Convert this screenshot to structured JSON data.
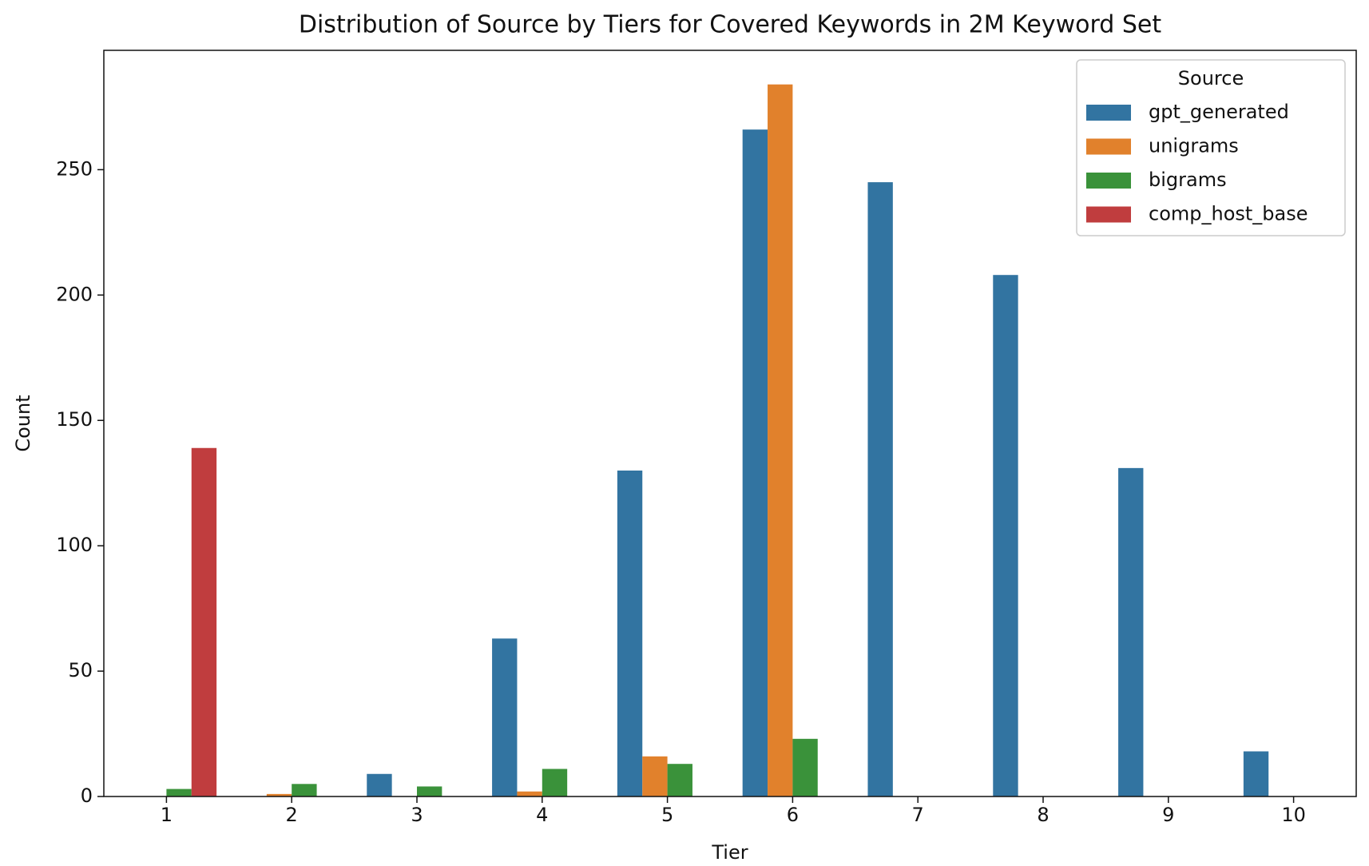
{
  "chart_data": {
    "type": "bar",
    "title": "Distribution of Source by Tiers for Covered Keywords in 2M Keyword Set",
    "x_label": "Tier",
    "y_label": "Count",
    "categories": [
      "1",
      "2",
      "3",
      "4",
      "5",
      "6",
      "7",
      "8",
      "9",
      "10"
    ],
    "legend_title": "Source",
    "legend": "upper right",
    "series": [
      {
        "name": "gpt_generated",
        "color": "#3274a1",
        "values": [
          null,
          null,
          9,
          63,
          130,
          266,
          245,
          208,
          131,
          18
        ]
      },
      {
        "name": "unigrams",
        "color": "#e1812c",
        "values": [
          null,
          1,
          null,
          2,
          16,
          284,
          null,
          null,
          null,
          null
        ]
      },
      {
        "name": "bigrams",
        "color": "#3a923a",
        "values": [
          3,
          5,
          4,
          11,
          13,
          23,
          null,
          null,
          null,
          null
        ]
      },
      {
        "name": "comp_host_base",
        "color": "#c03d3e",
        "values": [
          139,
          null,
          null,
          null,
          null,
          null,
          null,
          null,
          null,
          null
        ]
      }
    ],
    "ylim": [
      0,
      297.6
    ],
    "yticks": [
      0,
      50,
      100,
      150,
      200,
      250
    ]
  }
}
